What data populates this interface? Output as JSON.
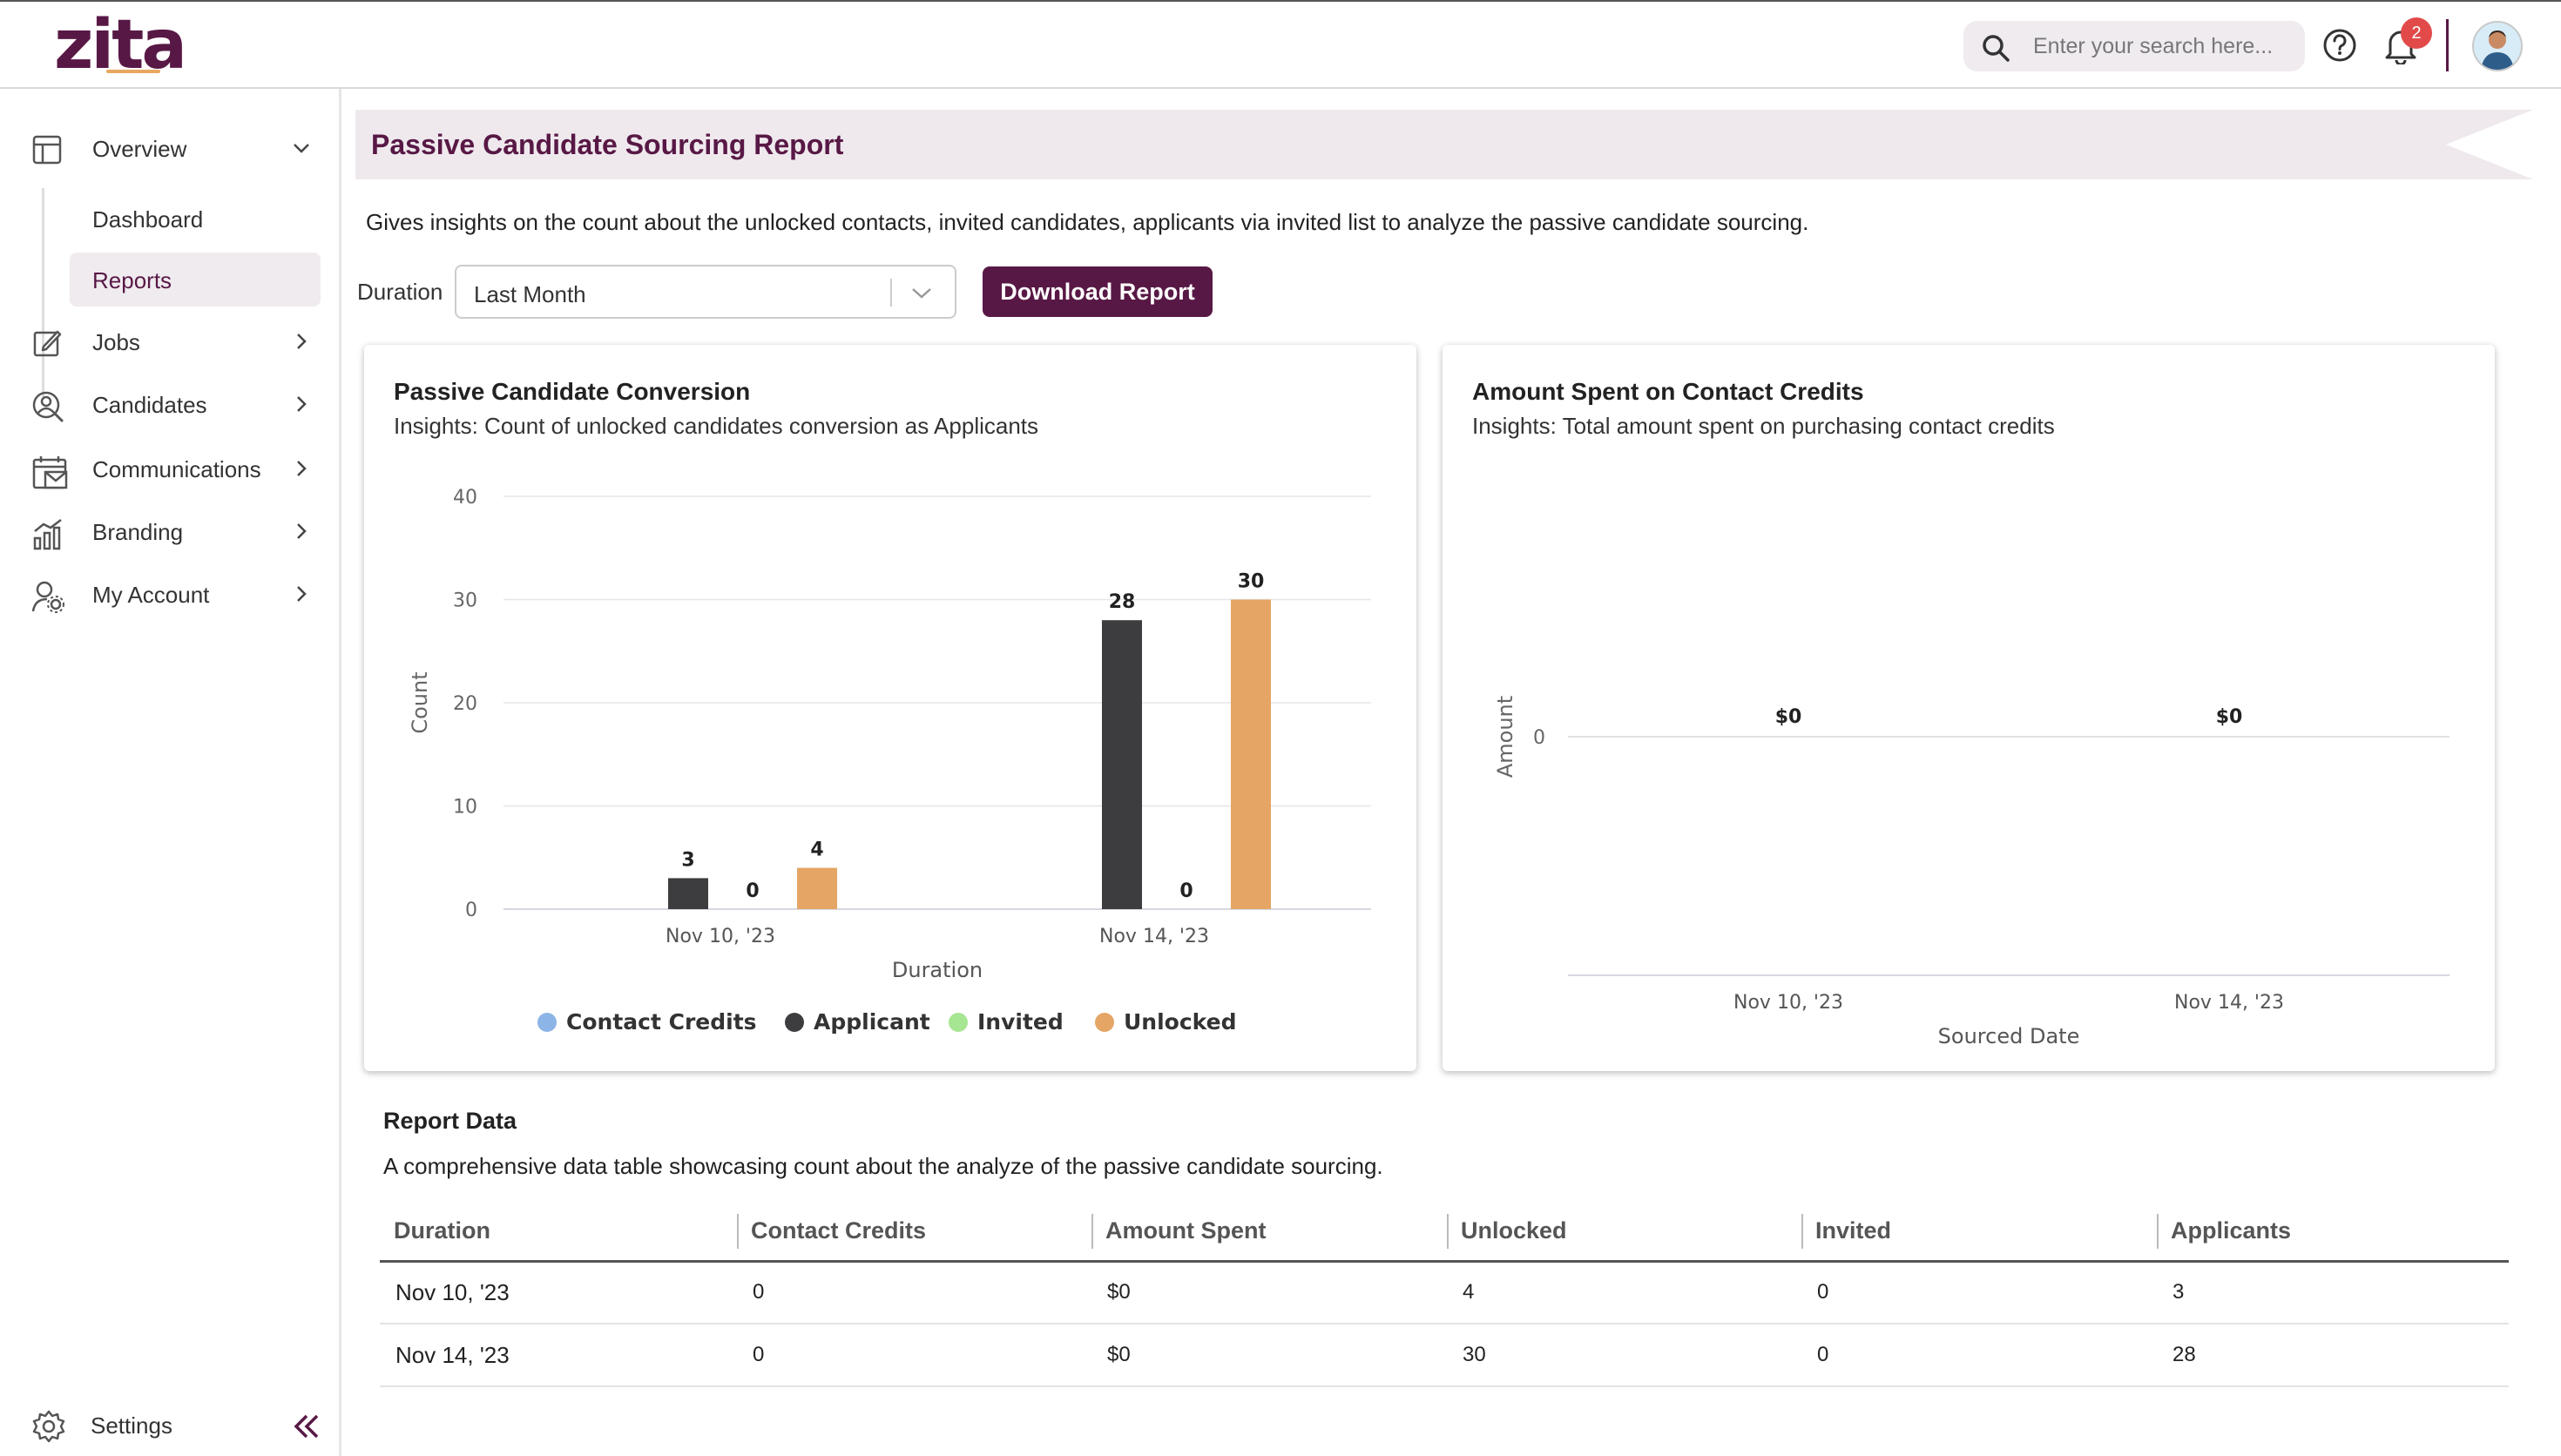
{
  "app": {
    "logo_text": "zita",
    "search_placeholder": "Enter your search here...",
    "notification_count": "2"
  },
  "sidebar": {
    "overview_label": "Overview",
    "sub_items": [
      {
        "label": "Dashboard",
        "active": false
      },
      {
        "label": "Reports",
        "active": true
      }
    ],
    "items": [
      {
        "label": "Jobs",
        "icon": "jobs-icon"
      },
      {
        "label": "Candidates",
        "icon": "candidates-icon"
      },
      {
        "label": "Communications",
        "icon": "communications-icon"
      },
      {
        "label": "Branding",
        "icon": "branding-icon"
      },
      {
        "label": "My Account",
        "icon": "my-account-icon"
      }
    ],
    "settings_label": "Settings"
  },
  "page": {
    "title": "Passive Candidate Sourcing Report",
    "description": "Gives insights on the count about the unlocked contacts, invited candidates, applicants via invited list to analyze the passive candidate sourcing.",
    "duration_label": "Duration",
    "duration_value": "Last Month",
    "download_label": "Download Report"
  },
  "colors": {
    "brand": "#581845",
    "contact_credits": "#8cb4e6",
    "applicant": "#3d3d40",
    "invited": "#a6e592",
    "unlocked": "#e5a565"
  },
  "chart_data": [
    {
      "type": "bar",
      "title": "Passive Candidate Conversion",
      "subtitle": "Insights: Count of unlocked candidates conversion as Applicants",
      "categories": [
        "Nov 10, '23",
        "Nov 14, '23"
      ],
      "series": [
        {
          "name": "Contact Credits",
          "values": [
            null,
            null
          ]
        },
        {
          "name": "Applicant",
          "values": [
            3,
            28
          ]
        },
        {
          "name": "Invited",
          "values": [
            0,
            0
          ]
        },
        {
          "name": "Unlocked",
          "values": [
            4,
            30
          ]
        }
      ],
      "xlabel": "Duration",
      "ylabel": "Count",
      "ylim": [
        0,
        40
      ],
      "yticks": [
        0,
        10,
        20,
        30,
        40
      ],
      "legend": "bottom"
    },
    {
      "type": "bar",
      "title": "Amount Spent on Contact Credits",
      "subtitle": "Insights: Total amount spent on purchasing contact credits",
      "categories": [
        "Nov 10, '23",
        "Nov 14, '23"
      ],
      "series": [
        {
          "name": "Amount",
          "values": [
            0,
            0
          ],
          "labels": [
            "$0",
            "$0"
          ]
        }
      ],
      "xlabel": "Sourced Date",
      "ylabel": "Amount",
      "yticks": [
        0
      ]
    }
  ],
  "report": {
    "title": "Report Data",
    "description": "A comprehensive data table showcasing count about the analyze of the passive candidate sourcing.",
    "columns": [
      "Duration",
      "Contact Credits",
      "Amount Spent",
      "Unlocked",
      "Invited",
      "Applicants"
    ],
    "rows": [
      [
        "Nov 10, '23",
        "0",
        "$0",
        "4",
        "0",
        "3"
      ],
      [
        "Nov 14, '23",
        "0",
        "$0",
        "30",
        "0",
        "28"
      ]
    ]
  }
}
